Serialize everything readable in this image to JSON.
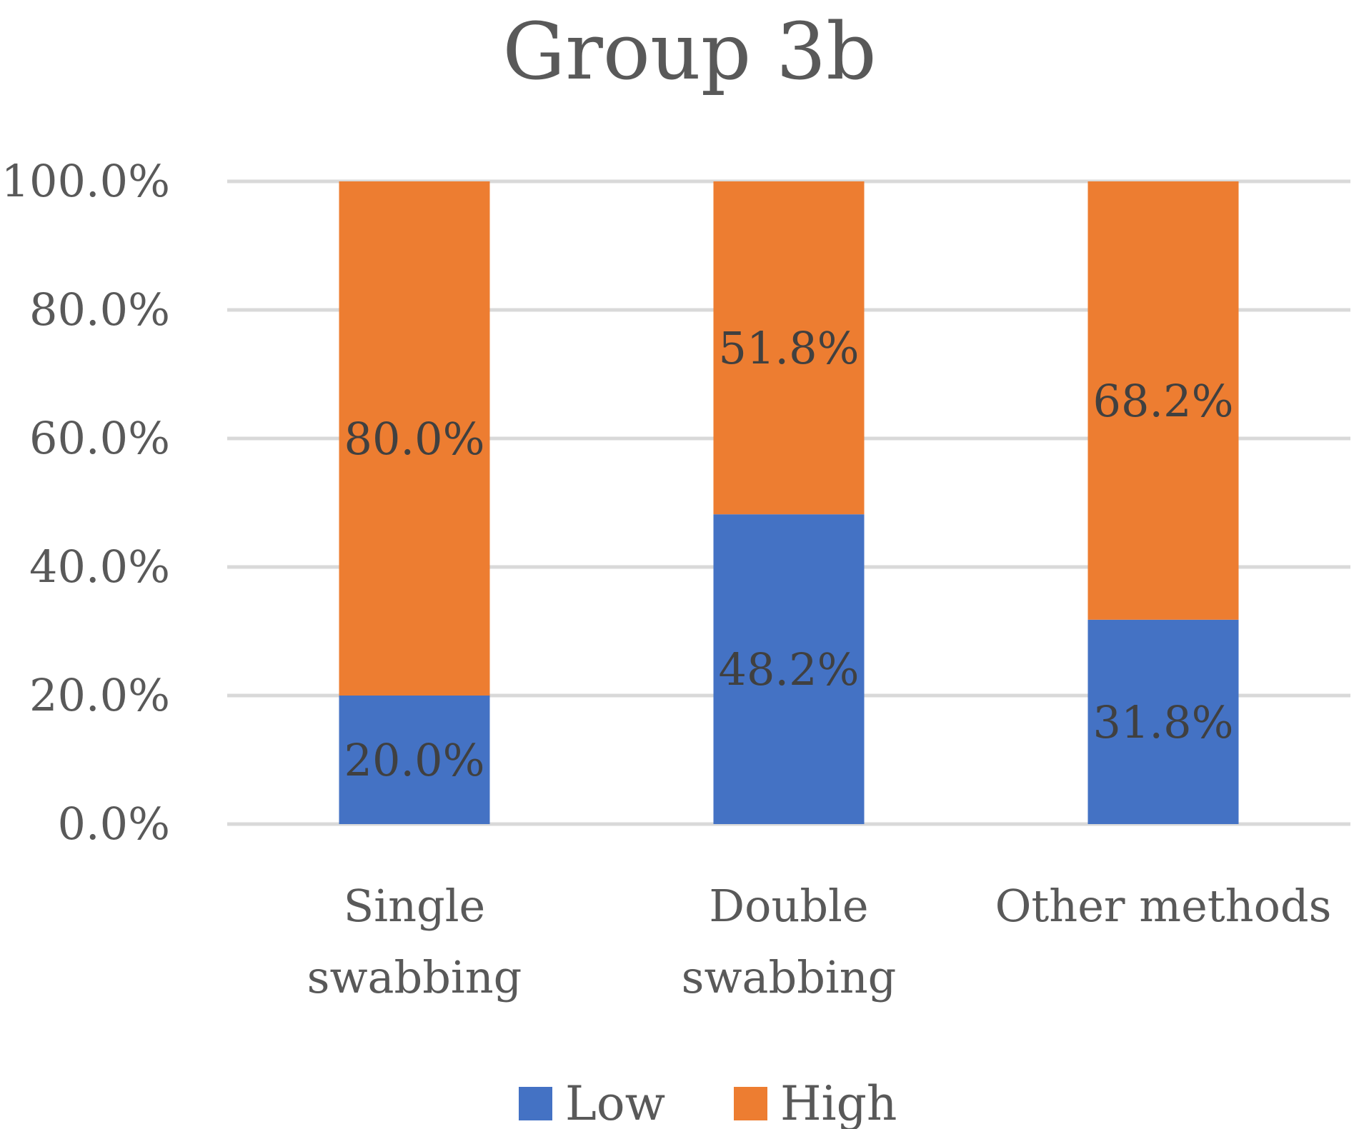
{
  "chart_data": {
    "type": "bar",
    "stacked": true,
    "title": "Group 3b",
    "categories": [
      [
        "Single",
        "swabbing"
      ],
      [
        "Double",
        "swabbing"
      ],
      [
        "Other methods"
      ]
    ],
    "series": [
      {
        "name": "Low",
        "color": "#4472c4",
        "values": [
          20.0,
          48.2,
          31.8
        ],
        "labels": [
          "20.0%",
          "48.2%",
          "31.8%"
        ]
      },
      {
        "name": "High",
        "color": "#ed7d31",
        "values": [
          80.0,
          51.8,
          68.2
        ],
        "labels": [
          "80.0%",
          "51.8%",
          "68.2%"
        ]
      }
    ],
    "ylim": [
      0,
      100
    ],
    "yticks": [
      "0.0%",
      "20.0%",
      "40.0%",
      "60.0%",
      "80.0%",
      "100.0%"
    ],
    "ytick_values": [
      0,
      20,
      40,
      60,
      80,
      100
    ],
    "grid": true,
    "legend_position": "bottom"
  }
}
